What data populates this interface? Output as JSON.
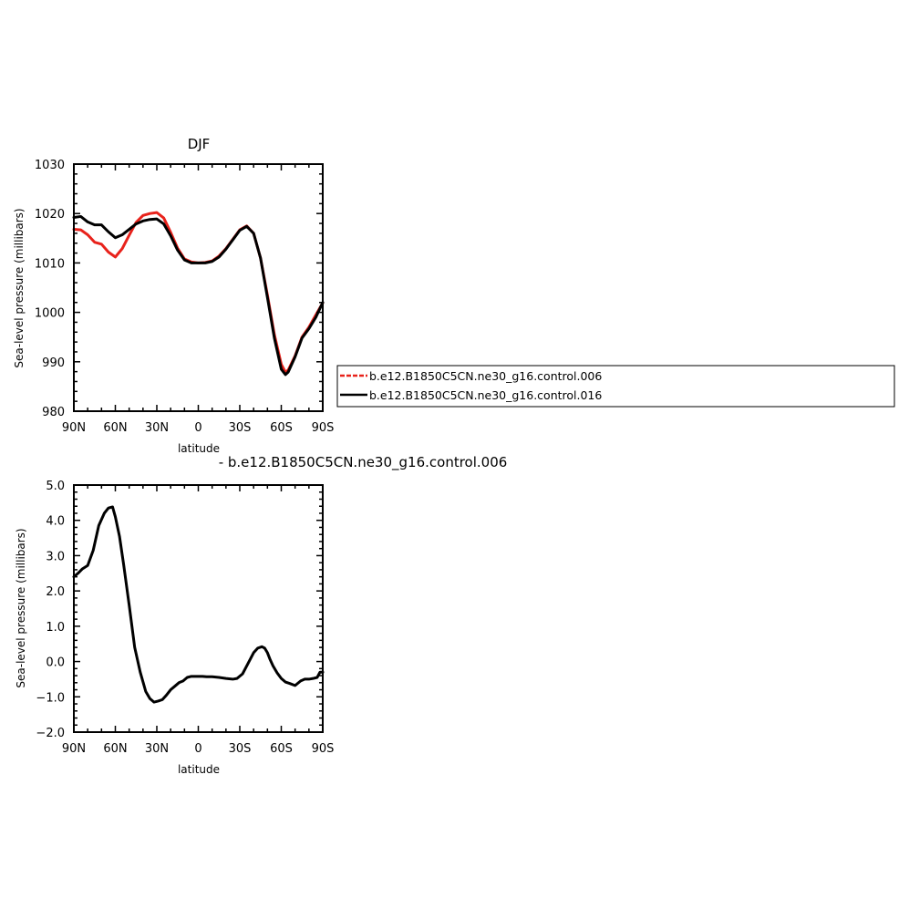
{
  "chart_data": [
    {
      "type": "line",
      "title": "DJF",
      "subtitle": "",
      "xlabel": "latitude",
      "ylabel": "Sea-level pressure (millibars)",
      "xlim": [
        90,
        -90
      ],
      "ylim": [
        980,
        1030
      ],
      "xticks": [
        90,
        60,
        30,
        0,
        -30,
        -60,
        -90
      ],
      "xtick_labels": [
        "90N",
        "60N",
        "30N",
        "0",
        "30S",
        "60S",
        "90S"
      ],
      "yticks": [
        980,
        990,
        1000,
        1010,
        1020,
        1030
      ],
      "ytick_labels": [
        "980",
        "990",
        "1000",
        "1010",
        "1020",
        "1030"
      ],
      "grid": false,
      "legend": {
        "placement": "right",
        "entries": [
          {
            "name": "b.e12.B1850C5CN.ne30_g16.control.006",
            "color": "#e8221b",
            "style": "dashed"
          },
          {
            "name": "b.e12.B1850C5CN.ne30_g16.control.016",
            "color": "#000000",
            "style": "solid"
          }
        ]
      },
      "series": [
        {
          "name": "b.e12.B1850C5CN.ne30_g16.control.006",
          "color": "#e8221b",
          "x": [
            90,
            85,
            80,
            75,
            70,
            65,
            60,
            55,
            50,
            45,
            40,
            35,
            30,
            25,
            20,
            15,
            10,
            5,
            0,
            -5,
            -10,
            -15,
            -20,
            -25,
            -30,
            -35,
            -40,
            -45,
            -50,
            -55,
            -60,
            -63,
            -65,
            -70,
            -75,
            -80,
            -85,
            -90
          ],
          "y": [
            1016.8,
            1016.7,
            1015.7,
            1014.2,
            1013.8,
            1012.2,
            1011.2,
            1012.9,
            1015.6,
            1018.2,
            1019.6,
            1020.0,
            1020.2,
            1019.1,
            1016.2,
            1013.0,
            1010.8,
            1010.2,
            1010.0,
            1010.1,
            1010.4,
            1011.4,
            1012.9,
            1014.8,
            1016.7,
            1017.5,
            1016.0,
            1011.0,
            1003.5,
            995.5,
            989.5,
            987.9,
            988.3,
            991.2,
            995.0,
            997.0,
            999.5,
            1001.9
          ]
        },
        {
          "name": "b.e12.B1850C5CN.ne30_g16.control.016",
          "color": "#000000",
          "x": [
            90,
            85,
            80,
            75,
            70,
            65,
            60,
            55,
            50,
            45,
            40,
            35,
            30,
            25,
            20,
            15,
            10,
            5,
            0,
            -5,
            -10,
            -15,
            -20,
            -25,
            -30,
            -35,
            -40,
            -45,
            -50,
            -55,
            -60,
            -63,
            -65,
            -70,
            -75,
            -80,
            -85,
            -90
          ],
          "y": [
            1019.2,
            1019.4,
            1018.3,
            1017.7,
            1017.7,
            1016.3,
            1015.1,
            1015.7,
            1016.8,
            1017.9,
            1018.5,
            1018.8,
            1018.9,
            1017.9,
            1015.5,
            1012.6,
            1010.6,
            1010.0,
            1010.0,
            1010.0,
            1010.3,
            1011.2,
            1012.8,
            1014.7,
            1016.6,
            1017.4,
            1016.0,
            1011.0,
            1003.0,
            994.8,
            988.5,
            987.4,
            987.9,
            991.0,
            994.8,
            996.7,
            999.0,
            1002.0
          ]
        }
      ]
    },
    {
      "type": "line",
      "title": "",
      "subtitle": "- b.e12.B1850C5CN.ne30_g16.control.006",
      "xlabel": "latitude",
      "ylabel": "Sea-level pressure (millibars)",
      "xlim": [
        90,
        -90
      ],
      "ylim": [
        -2.0,
        5.0
      ],
      "xticks": [
        90,
        60,
        30,
        0,
        -30,
        -60,
        -90
      ],
      "xtick_labels": [
        "90N",
        "60N",
        "30N",
        "0",
        "30S",
        "60S",
        "90S"
      ],
      "yticks": [
        -2.0,
        -1.0,
        0.0,
        1.0,
        2.0,
        3.0,
        4.0,
        5.0
      ],
      "ytick_labels": [
        "−2.0",
        "−1.0",
        "0.0",
        "1.0",
        "2.0",
        "3.0",
        "4.0",
        "5.0"
      ],
      "grid": false,
      "series": [
        {
          "color": "#000000",
          "x": [
            90,
            87,
            84,
            80,
            76,
            72,
            68,
            65,
            62,
            60,
            57,
            54,
            50,
            46,
            42,
            38,
            35,
            32,
            29,
            26,
            23,
            20,
            17,
            14,
            11,
            8,
            5,
            2,
            0,
            -3,
            -6,
            -10,
            -15,
            -20,
            -25,
            -28,
            -32,
            -36,
            -40,
            -43,
            -46,
            -48,
            -50,
            -52,
            -54,
            -57,
            -60,
            -63,
            -66,
            -70,
            -74,
            -77,
            -80,
            -83,
            -86,
            -88,
            -90
          ],
          "y": [
            2.4,
            2.5,
            2.62,
            2.72,
            3.15,
            3.85,
            4.2,
            4.35,
            4.38,
            4.1,
            3.55,
            2.75,
            1.6,
            0.4,
            -0.3,
            -0.85,
            -1.05,
            -1.15,
            -1.12,
            -1.08,
            -0.95,
            -0.8,
            -0.7,
            -0.6,
            -0.55,
            -0.45,
            -0.42,
            -0.42,
            -0.42,
            -0.42,
            -0.43,
            -0.43,
            -0.45,
            -0.48,
            -0.5,
            -0.48,
            -0.35,
            -0.05,
            0.25,
            0.38,
            0.42,
            0.38,
            0.25,
            0.05,
            -0.12,
            -0.32,
            -0.48,
            -0.58,
            -0.62,
            -0.68,
            -0.55,
            -0.5,
            -0.5,
            -0.48,
            -0.45,
            -0.3,
            -0.3
          ]
        }
      ]
    }
  ]
}
